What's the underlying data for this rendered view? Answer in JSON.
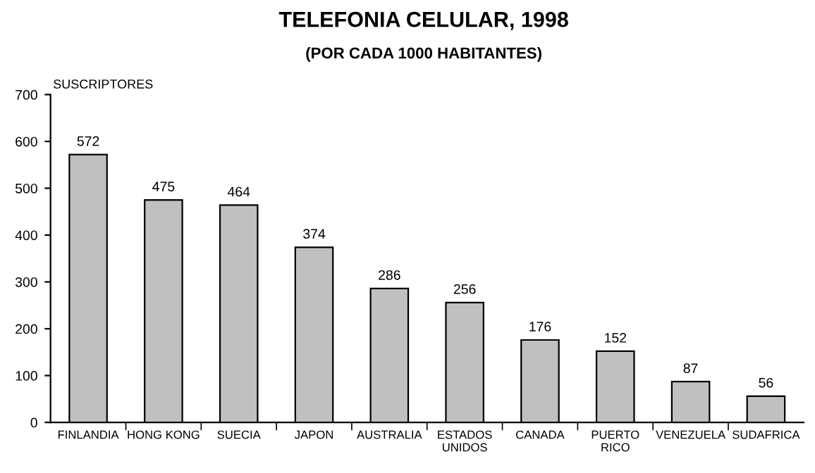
{
  "chart_data": {
    "type": "bar",
    "title": "TELEFONIA CELULAR, 1998",
    "subtitle": "(POR CADA 1000 HABITANTES)",
    "ylabel": "SUSCRIPTORES",
    "categories": [
      "FINLANDIA",
      "HONG KONG",
      "SUECIA",
      "JAPON",
      "AUSTRALIA",
      "ESTADOS\nUNIDOS",
      "CANADA",
      "PUERTO\nRICO",
      "VENEZUELA",
      "SUDAFRICA"
    ],
    "values": [
      572,
      475,
      464,
      374,
      286,
      256,
      176,
      152,
      87,
      56
    ],
    "color": "#c0c0c0",
    "ylim": [
      0,
      700
    ],
    "yticks": [
      0,
      100,
      200,
      300,
      400,
      500,
      600,
      700
    ],
    "grid": false,
    "legend": false,
    "data_labels": true
  }
}
